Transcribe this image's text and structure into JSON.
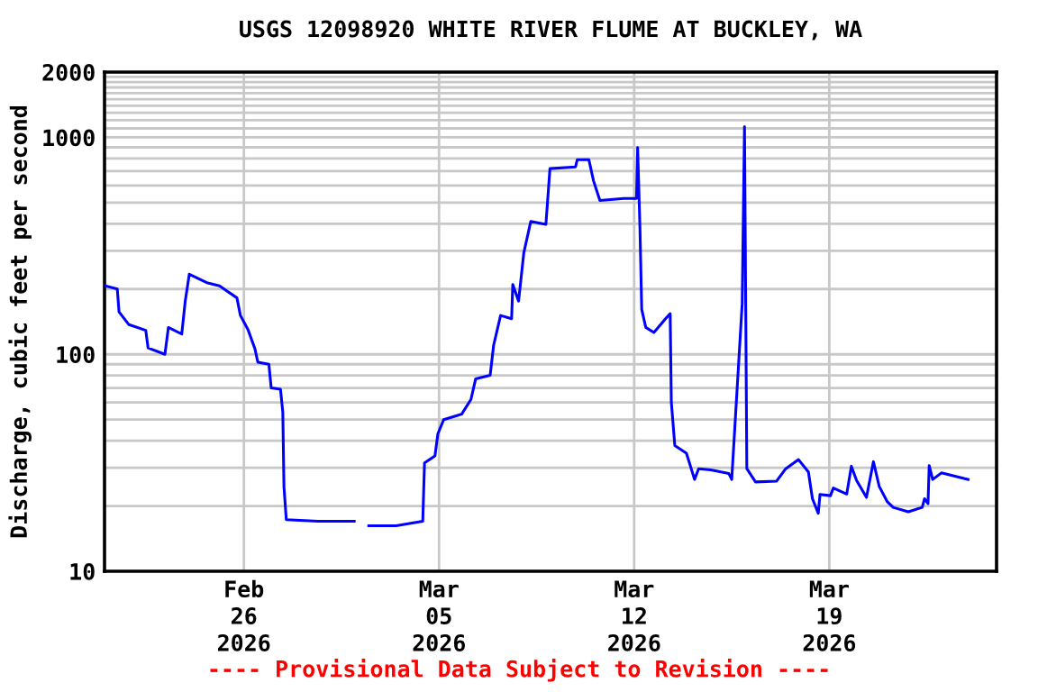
{
  "chart_data": {
    "type": "line",
    "title": "USGS 12098920 WHITE RIVER FLUME AT BUCKLEY, WA",
    "ylabel": "Discharge, cubic feet per second",
    "annotations": [
      "---- Provisional Data Subject to Revision ----"
    ],
    "x": [
      "2026-02-21T00:30",
      "2026-02-21T11:00",
      "2026-02-21T12:30",
      "2026-02-21T21:00",
      "2026-02-22T11:30",
      "2026-02-22T13:30",
      "2026-02-23T04:00",
      "2026-02-23T07:00",
      "2026-02-23T18:30",
      "2026-02-23T21:30",
      "2026-02-24T01:00",
      "2026-02-24T16:00",
      "2026-02-25T03:00",
      "2026-02-25T18:00",
      "2026-02-25T21:00",
      "2026-02-26T03:30",
      "2026-02-26T09:30",
      "2026-02-26T12:00",
      "2026-02-26T21:30",
      "2026-02-26T23:30",
      "2026-02-27T07:30",
      "2026-02-27T09:30",
      "2026-02-27T10:30",
      "2026-02-27T12:30",
      "2026-02-28T16:00",
      "2026-03-01T23:00",
      "2026-03-02T06:00",
      "2026-03-02T11:30",
      "2026-03-03T11:00",
      "2026-03-04T10:00",
      "2026-03-04T11:30",
      "2026-03-04T20:30",
      "2026-03-04T23:00",
      "2026-03-05T04:00",
      "2026-03-05T19:30",
      "2026-03-06T03:30",
      "2026-03-06T07:30",
      "2026-03-06T20:00",
      "2026-03-06T23:00",
      "2026-03-07T05:00",
      "2026-03-07T14:30",
      "2026-03-07T15:30",
      "2026-03-07T20:30",
      "2026-03-08T01:00",
      "2026-03-08T07:00",
      "2026-03-08T20:00",
      "2026-03-08T23:30",
      "2026-03-09T21:30",
      "2026-03-09T23:00",
      "2026-03-10T09:00",
      "2026-03-10T13:00",
      "2026-03-10T18:30",
      "2026-03-11T15:00",
      "2026-03-12T02:00",
      "2026-03-12T03:00",
      "2026-03-12T05:00",
      "2026-03-12T06:30",
      "2026-03-12T10:00",
      "2026-03-12T17:00",
      "2026-03-13T03:00",
      "2026-03-13T07:00",
      "2026-03-13T08:00",
      "2026-03-13T11:00",
      "2026-03-13T21:00",
      "2026-03-14T04:00",
      "2026-03-14T07:30",
      "2026-03-14T18:00",
      "2026-03-15T09:30",
      "2026-03-15T12:00",
      "2026-03-15T21:00",
      "2026-03-15T23:00",
      "2026-03-16T01:00",
      "2026-03-16T08:30",
      "2026-03-17T02:30",
      "2026-03-17T10:30",
      "2026-03-17T21:30",
      "2026-03-18T06:00",
      "2026-03-18T09:30",
      "2026-03-18T14:30",
      "2026-03-18T16:00",
      "2026-03-19T01:00",
      "2026-03-19T03:30",
      "2026-03-19T15:00",
      "2026-03-19T19:00",
      "2026-03-19T23:30",
      "2026-03-20T08:00",
      "2026-03-20T14:00",
      "2026-03-20T19:00",
      "2026-03-21T02:00",
      "2026-03-21T07:00",
      "2026-03-21T20:00",
      "2026-03-22T08:00",
      "2026-03-22T10:00",
      "2026-03-22T13:00",
      "2026-03-22T14:00",
      "2026-03-22T17:00",
      "2026-03-23T00:30",
      "2026-03-23T23:30"
    ],
    "series": [
      {
        "color": "#0000ff",
        "values": [
          207,
          200,
          157,
          137,
          129,
          107,
          100,
          133,
          124,
          176,
          234,
          214,
          207,
          182,
          151,
          130,
          106,
          92,
          90,
          70,
          69,
          54,
          24.5,
          17.3,
          17,
          17,
          null,
          16.2,
          16.2,
          17,
          31.6,
          34,
          43,
          50,
          53,
          62,
          77,
          80,
          110,
          151,
          146,
          210,
          176,
          294,
          410,
          397,
          718,
          731,
          789,
          789,
          631,
          512,
          523,
          523,
          898,
          379,
          161,
          133,
          126,
          146,
          154,
          60,
          38,
          35,
          26.5,
          29.7,
          29.3,
          28.2,
          26.5,
          171,
          1120,
          29.7,
          25.8,
          26,
          29.7,
          32.7,
          28.7,
          21.6,
          18.5,
          22.6,
          22.3,
          24.2,
          22.7,
          30.5,
          26.2,
          21.9,
          32,
          24.6,
          20.9,
          19.7,
          18.8,
          19.7,
          21.6,
          20.5,
          30.7,
          26.5,
          28.4,
          26.5
        ]
      }
    ],
    "log": "y",
    "xlim": [
      "2026-02-21",
      "2026-03-25"
    ],
    "xticks": [
      {
        "value": "2026-02-26",
        "label": "Feb\n26\n2026"
      },
      {
        "value": "2026-03-05",
        "label": "Mar\n05\n2026"
      },
      {
        "value": "2026-03-12",
        "label": "Mar\n12\n2026"
      },
      {
        "value": "2026-03-19",
        "label": "Mar\n19\n2026"
      }
    ],
    "ylim": [
      10,
      2000
    ],
    "yticks": [
      10,
      {
        "value": 20,
        "label": null
      },
      {
        "value": 30,
        "label": null
      },
      {
        "value": 40,
        "label": null
      },
      {
        "value": 50,
        "label": null
      },
      {
        "value": 60,
        "label": null
      },
      {
        "value": 70,
        "label": null
      },
      {
        "value": 80,
        "label": null
      },
      {
        "value": 90,
        "label": null
      },
      100,
      {
        "value": 200,
        "label": null
      },
      {
        "value": 300,
        "label": null
      },
      {
        "value": 400,
        "label": null
      },
      {
        "value": 500,
        "label": null
      },
      {
        "value": 600,
        "label": null
      },
      {
        "value": 700,
        "label": null
      },
      {
        "value": 800,
        "label": null
      },
      {
        "value": 900,
        "label": null
      },
      1000,
      {
        "value": 1100,
        "label": null
      },
      {
        "value": 1200,
        "label": null
      },
      {
        "value": 1300,
        "label": null
      },
      {
        "value": 1400,
        "label": null
      },
      {
        "value": 1500,
        "label": null
      },
      {
        "value": 1600,
        "label": null
      },
      {
        "value": 1700,
        "label": null
      },
      {
        "value": 1800,
        "label": null
      },
      {
        "value": 1900,
        "label": null
      },
      2000
    ],
    "grid": true
  }
}
